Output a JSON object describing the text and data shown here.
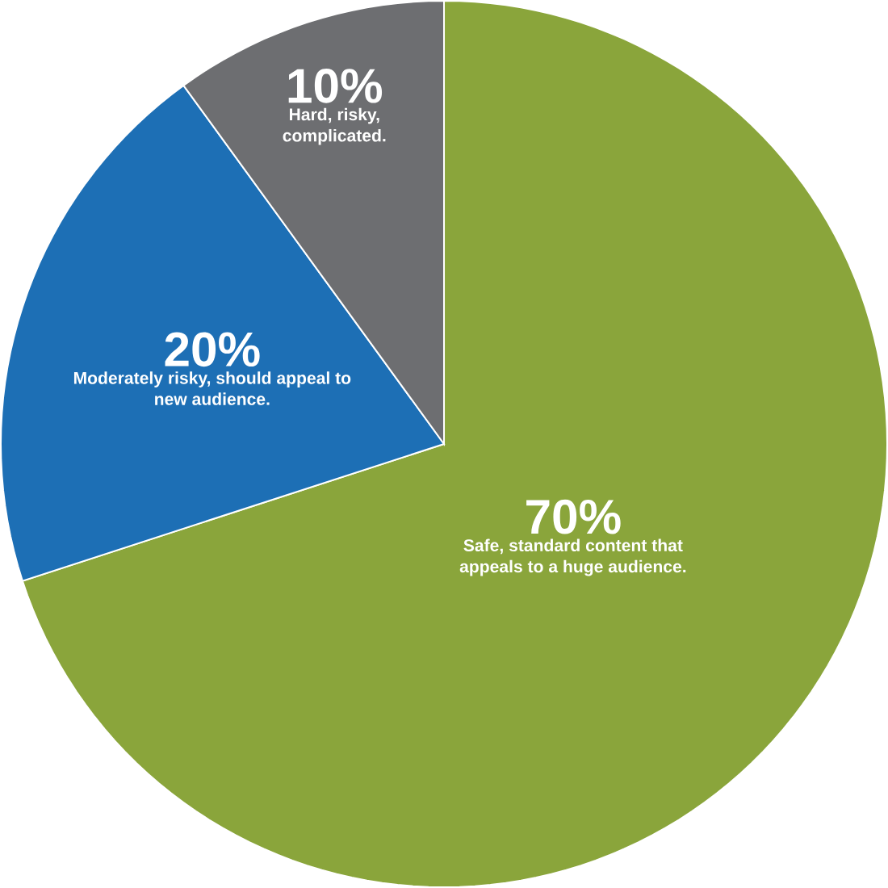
{
  "chart_data": {
    "type": "pie",
    "categories": [
      "Safe, standard content that appeals to a huge audience.",
      "Moderately risky, should appeal to new audience.",
      "Hard, risky, complicated."
    ],
    "values": [
      70,
      20,
      10
    ],
    "value_labels": [
      "70%",
      "20%",
      "10%"
    ],
    "colors": [
      "#8aa53b",
      "#1d6fb5",
      "#6d6e71"
    ]
  }
}
